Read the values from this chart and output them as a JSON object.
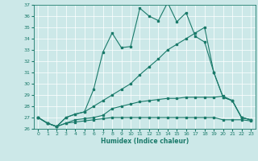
{
  "xlabel": "Humidex (Indice chaleur)",
  "background_color": "#cce8e8",
  "line_color": "#1a7a6a",
  "xlim": [
    -0.5,
    23.5
  ],
  "ylim": [
    26,
    37
  ],
  "yticks": [
    26,
    27,
    28,
    29,
    30,
    31,
    32,
    33,
    34,
    35,
    36,
    37
  ],
  "xticks": [
    0,
    1,
    2,
    3,
    4,
    5,
    6,
    7,
    8,
    9,
    10,
    11,
    12,
    13,
    14,
    15,
    16,
    17,
    18,
    19,
    20,
    21,
    22,
    23
  ],
  "series": [
    [
      27.0,
      26.5,
      26.2,
      27.0,
      27.3,
      27.5,
      29.5,
      32.8,
      34.5,
      33.2,
      33.3,
      36.7,
      36.0,
      35.6,
      37.2,
      35.5,
      36.3,
      34.2,
      33.7,
      31.0,
      28.8,
      28.5,
      27.0,
      26.8
    ],
    [
      27.0,
      26.5,
      26.2,
      27.0,
      27.3,
      27.5,
      28.0,
      28.5,
      29.0,
      29.5,
      30.0,
      30.8,
      31.5,
      32.2,
      33.0,
      33.5,
      34.0,
      34.5,
      35.0,
      31.0,
      28.8,
      28.5,
      27.0,
      26.8
    ],
    [
      27.0,
      26.5,
      26.2,
      26.5,
      26.8,
      26.9,
      27.0,
      27.2,
      27.8,
      28.0,
      28.2,
      28.4,
      28.5,
      28.6,
      28.7,
      28.7,
      28.8,
      28.8,
      28.8,
      28.8,
      28.9,
      28.5,
      27.0,
      26.8
    ],
    [
      27.0,
      26.5,
      26.2,
      26.5,
      26.6,
      26.7,
      26.8,
      26.9,
      27.0,
      27.0,
      27.0,
      27.0,
      27.0,
      27.0,
      27.0,
      27.0,
      27.0,
      27.0,
      27.0,
      27.0,
      26.8,
      26.8,
      26.8,
      26.7
    ]
  ]
}
